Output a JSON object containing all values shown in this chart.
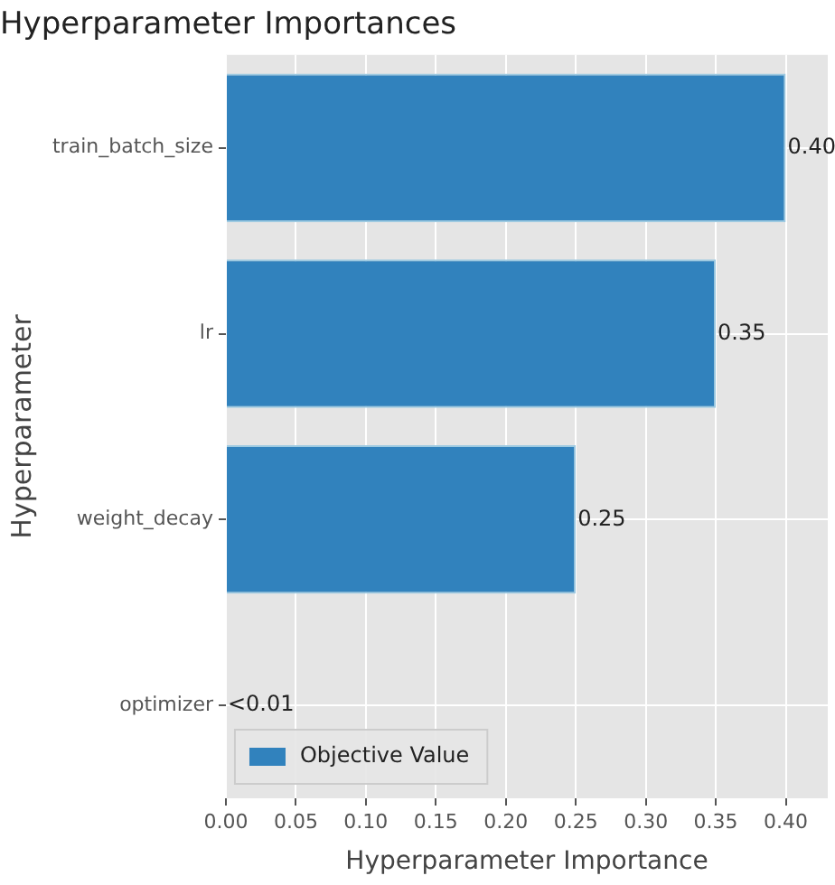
{
  "chart_data": {
    "type": "bar",
    "orientation": "horizontal",
    "title": "Hyperparameter Importances",
    "xlabel": "Hyperparameter Importance",
    "ylabel": "Hyperparameter",
    "categories": [
      "train_batch_size",
      "lr",
      "weight_decay",
      "optimizer"
    ],
    "series": [
      {
        "name": "Objective Value",
        "color": "#3182bd",
        "values": [
          0.4,
          0.35,
          0.25,
          0
        ],
        "value_labels": [
          "0.40",
          "0.35",
          "0.25",
          "<0.01"
        ]
      }
    ],
    "xlim": [
      0,
      0.43
    ],
    "xticks": [
      {
        "value": 0,
        "label": "0.00"
      },
      0.05,
      {
        "value": 0.1,
        "label": "0.10"
      },
      0.15,
      {
        "value": 0.2,
        "label": "0.20"
      },
      0.25,
      {
        "value": 0.3,
        "label": "0.30"
      },
      0.35,
      {
        "value": 0.4,
        "label": "0.40"
      }
    ],
    "grid": true,
    "legend": "bottom left"
  }
}
